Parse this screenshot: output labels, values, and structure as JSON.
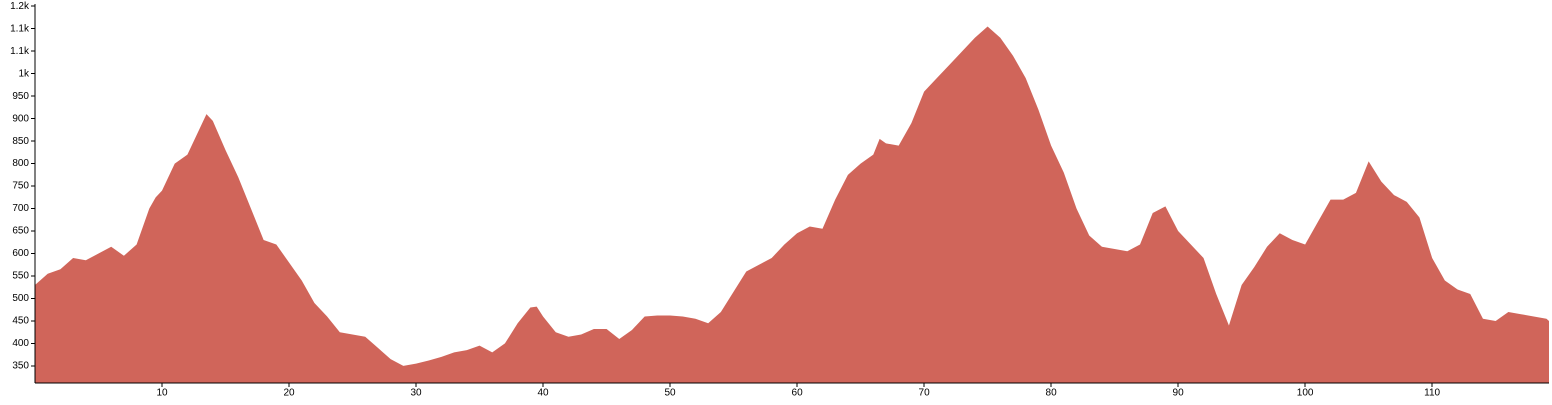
{
  "chart_data": {
    "type": "area",
    "color": "#d0655a",
    "x": [
      0,
      1,
      2,
      3,
      4,
      5,
      6,
      7,
      8,
      9,
      9.5,
      10,
      11,
      12,
      13,
      13.5,
      14,
      15,
      16,
      17,
      18,
      19,
      20,
      21,
      22,
      23,
      24,
      25,
      26,
      27,
      28,
      29,
      30,
      31,
      32,
      33,
      34,
      35,
      36,
      37,
      38,
      39,
      39.5,
      40,
      41,
      42,
      43,
      44,
      45,
      46,
      47,
      48,
      49,
      50,
      51,
      52,
      53,
      54,
      55,
      56,
      57,
      58,
      59,
      60,
      61,
      62,
      63,
      64,
      65,
      66,
      66.5,
      67,
      68,
      69,
      70,
      71,
      72,
      73,
      74,
      75,
      76,
      77,
      78,
      79,
      80,
      81,
      82,
      83,
      84,
      85,
      86,
      87,
      88,
      89,
      90,
      91,
      92,
      93,
      94,
      95,
      96,
      97,
      98,
      99,
      100,
      101,
      102,
      103,
      104,
      105,
      106,
      107,
      108,
      109,
      110,
      111,
      112,
      113,
      114,
      115,
      116,
      117,
      118,
      119,
      119.2
    ],
    "values": [
      530,
      555,
      565,
      590,
      585,
      600,
      615,
      595,
      620,
      700,
      725,
      740,
      800,
      820,
      880,
      910,
      895,
      830,
      770,
      700,
      630,
      620,
      580,
      540,
      490,
      460,
      425,
      420,
      415,
      390,
      365,
      350,
      355,
      362,
      370,
      380,
      385,
      395,
      380,
      400,
      445,
      480,
      482,
      460,
      425,
      415,
      420,
      432,
      432,
      410,
      430,
      460,
      462,
      462,
      460,
      455,
      445,
      470,
      515,
      560,
      575,
      590,
      620,
      645,
      660,
      655,
      720,
      775,
      800,
      820,
      855,
      845,
      840,
      890,
      960,
      990,
      1020,
      1050,
      1080,
      1105,
      1080,
      1040,
      990,
      920,
      840,
      780,
      700,
      640,
      615,
      610,
      605,
      620,
      690,
      705,
      650,
      620,
      590,
      510,
      440,
      530,
      570,
      615,
      645,
      630,
      620,
      670,
      720,
      720,
      735,
      805,
      760,
      730,
      715,
      680,
      590,
      540,
      520,
      510,
      455,
      450,
      470,
      465,
      460,
      455,
      450
    ],
    "xlim": [
      0,
      119.2
    ],
    "xticks": [
      10,
      20,
      30,
      40,
      50,
      60,
      70,
      80,
      90,
      100,
      110
    ],
    "ylim": [
      312,
      1155
    ],
    "yticks": [
      350,
      400,
      450,
      500,
      550,
      600,
      650,
      700,
      750,
      800,
      850,
      900,
      950,
      {
        "value": 1000,
        "label": "1k"
      },
      {
        "value": 1050,
        "label": "1.1k"
      },
      {
        "value": 1100,
        "label": "1.1k"
      },
      {
        "value": 1150,
        "label": "1.2k"
      }
    ]
  }
}
